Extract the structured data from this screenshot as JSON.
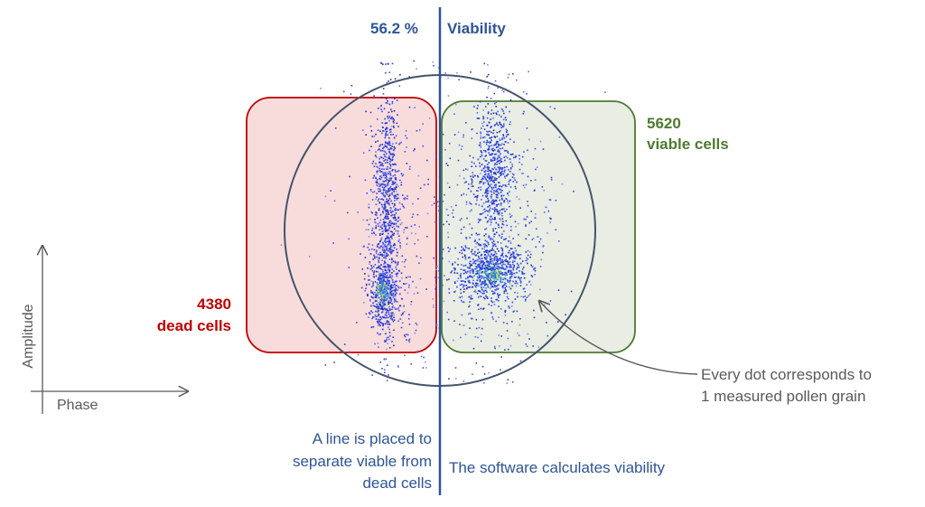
{
  "header": {
    "viability_value": "56.2 %",
    "viability_label": "Viability"
  },
  "gates": {
    "dead": {
      "count": "4380",
      "label": "dead cells",
      "color": "#c00000",
      "fill": "#f8dcdc"
    },
    "viable": {
      "count": "5620",
      "label": "viable cells",
      "color": "#4e7a30",
      "fill": "#e9ede4"
    }
  },
  "axes": {
    "y_label": "Amplitude",
    "x_label": "Phase"
  },
  "annotations": {
    "dot_note_line1": "Every dot corresponds to",
    "dot_note_line2": "1 measured pollen grain",
    "line_note_line1": "A line is placed to",
    "line_note_line2": "separate viable from",
    "line_note_line3": "dead cells",
    "software_note": "The software calculates viability"
  },
  "colors": {
    "separator_line": "#2e5597",
    "circle": "#44546a",
    "text_blue": "#2e5597",
    "text_gray": "#595959"
  }
}
